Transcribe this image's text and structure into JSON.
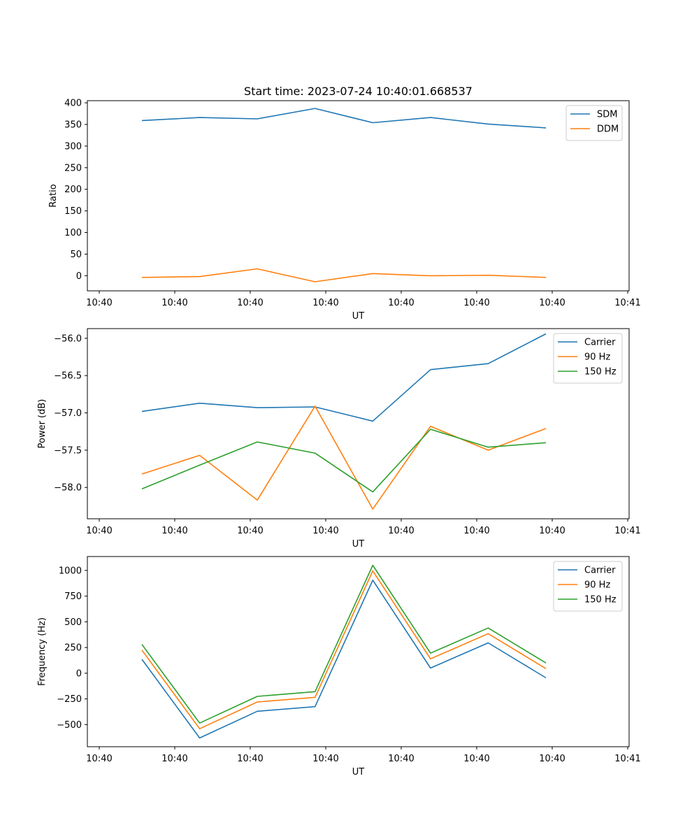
{
  "chart_data": [
    {
      "type": "line",
      "title": "Start time: 2023-07-24 10:40:01.668537",
      "xlabel": "UT",
      "ylabel": "Ratio",
      "xticklabels": [
        "10:40",
        "10:40",
        "10:40",
        "10:40",
        "10:40",
        "10:40",
        "10:40",
        "10:41"
      ],
      "x": [
        1,
        2,
        3,
        4,
        5,
        6,
        7,
        8
      ],
      "xlim": [
        0.2,
        9.6
      ],
      "ylim": [
        -35,
        405
      ],
      "yticks": [
        0,
        50,
        100,
        150,
        200,
        250,
        300,
        350,
        400
      ],
      "legend": "top-right",
      "series": [
        {
          "name": "SDM",
          "color": "#1f77b4",
          "values": [
            359,
            366,
            363,
            387,
            354,
            366,
            351,
            342
          ]
        },
        {
          "name": "DDM",
          "color": "#ff7f0e",
          "values": [
            -4,
            -2,
            16,
            -14,
            5,
            0,
            1,
            -4
          ]
        }
      ]
    },
    {
      "type": "line",
      "title": "",
      "xlabel": "UT",
      "ylabel": "Power (dB)",
      "xticklabels": [
        "10:40",
        "10:40",
        "10:40",
        "10:40",
        "10:40",
        "10:40",
        "10:40",
        "10:41"
      ],
      "x": [
        1,
        2,
        3,
        4,
        5,
        6,
        7,
        8
      ],
      "xlim": [
        0.2,
        9.6
      ],
      "ylim": [
        -58.42,
        -55.87
      ],
      "yticks": [
        -58.0,
        -57.5,
        -57.0,
        -56.5,
        -56.0
      ],
      "ytickformat": 1,
      "legend": "top-right",
      "series": [
        {
          "name": "Carrier",
          "color": "#1f77b4",
          "values": [
            -56.98,
            -56.87,
            -56.93,
            -56.92,
            -57.11,
            -56.42,
            -56.34,
            -55.94
          ]
        },
        {
          "name": "90 Hz",
          "color": "#ff7f0e",
          "values": [
            -57.82,
            -57.57,
            -58.17,
            -56.91,
            -58.29,
            -57.18,
            -57.5,
            -57.21
          ]
        },
        {
          "name": "150 Hz",
          "color": "#2ca02c",
          "values": [
            -58.02,
            -57.7,
            -57.39,
            -57.54,
            -58.06,
            -57.22,
            -57.46,
            -57.4
          ]
        }
      ]
    },
    {
      "type": "line",
      "title": "",
      "xlabel": "UT",
      "ylabel": "Frequency (Hz)",
      "xticklabels": [
        "10:40",
        "10:40",
        "10:40",
        "10:40",
        "10:40",
        "10:40",
        "10:40",
        "10:41"
      ],
      "x": [
        1,
        2,
        3,
        4,
        5,
        6,
        7,
        8
      ],
      "xlim": [
        0.2,
        9.6
      ],
      "ylim": [
        -715,
        1135
      ],
      "yticks": [
        -500,
        -250,
        0,
        250,
        500,
        750,
        1000
      ],
      "legend": "top-right",
      "series": [
        {
          "name": "Carrier",
          "color": "#1f77b4",
          "values": [
            135,
            -630,
            -370,
            -325,
            905,
            50,
            295,
            -45
          ]
        },
        {
          "name": "90 Hz",
          "color": "#ff7f0e",
          "values": [
            225,
            -540,
            -280,
            -235,
            995,
            140,
            385,
            45
          ]
        },
        {
          "name": "150 Hz",
          "color": "#2ca02c",
          "values": [
            280,
            -485,
            -225,
            -180,
            1050,
            195,
            440,
            100
          ]
        }
      ]
    }
  ]
}
